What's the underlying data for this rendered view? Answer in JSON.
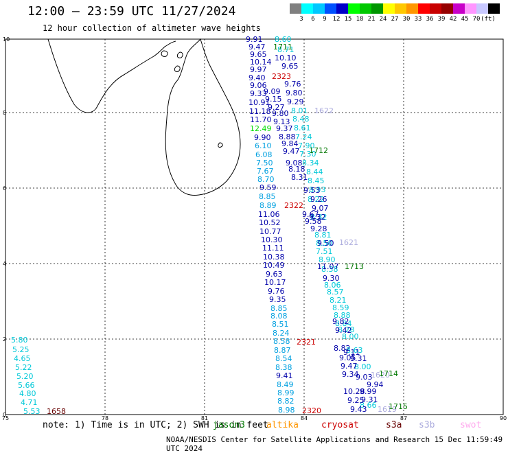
{
  "header": {
    "title": "12:00 – 23:59 UTC 11/27/2024",
    "subtitle": "12 hour collection of altimeter wave heights"
  },
  "scale": {
    "colors": [
      "#808080",
      "#00ffff",
      "#00c8ff",
      "#0050ff",
      "#0000c8",
      "#00ff00",
      "#00c800",
      "#009600",
      "#ffff00",
      "#ffc800",
      "#ff9600",
      "#ff0000",
      "#c80000",
      "#960000",
      "#c800c8",
      "#ff96ff",
      "#c8c8ff",
      "#000000"
    ],
    "labels": [
      "3",
      "6",
      "9",
      "12",
      "15",
      "18",
      "21",
      "24",
      "27",
      "30",
      "33",
      "36",
      "39",
      "42",
      "45",
      "70",
      "(ft)"
    ]
  },
  "axes": {
    "x_ticks": [
      "75",
      "78",
      "81",
      "84",
      "87",
      "90"
    ],
    "y_ticks": [
      "0",
      "2",
      "4",
      "6",
      "8",
      "10"
    ]
  },
  "tracks": [
    {
      "color": "#00c8d8",
      "points": [
        [
          "5.80",
          16,
          495
        ],
        [
          "5.25",
          18,
          509
        ],
        [
          "4.65",
          20,
          522
        ],
        [
          "5.22",
          22,
          535
        ],
        [
          "5.20",
          24,
          548
        ],
        [
          "5.66",
          26,
          561
        ],
        [
          "4.80",
          28,
          573
        ],
        [
          "4.71",
          30,
          586
        ],
        [
          "5.53",
          34,
          599
        ]
      ]
    },
    {
      "color": "#0000aa",
      "points": [
        [
          "9.91",
          358,
          57
        ],
        [
          "9.47",
          362,
          68
        ],
        [
          "9.65",
          364,
          79
        ],
        [
          "10.14",
          364,
          90
        ],
        [
          "9.97",
          364,
          101
        ],
        [
          "9.40",
          362,
          113
        ],
        [
          "9.06",
          364,
          124
        ],
        [
          "9.33",
          364,
          136
        ],
        [
          "10.91",
          362,
          149
        ],
        [
          "11.18",
          363,
          162
        ],
        [
          "11.70",
          364,
          174
        ],
        [
          "9.90",
          370,
          200
        ],
        [
          "9.59",
          378,
          273
        ],
        [
          "11.06",
          376,
          312
        ],
        [
          "10.52",
          377,
          324
        ],
        [
          "10.77",
          378,
          337
        ],
        [
          "10.30",
          380,
          349
        ],
        [
          "11.11",
          382,
          361
        ],
        [
          "10.38",
          383,
          374
        ],
        [
          "10.49",
          383,
          386
        ],
        [
          "9.63",
          387,
          399
        ],
        [
          "10.17",
          385,
          411
        ],
        [
          "9.76",
          390,
          424
        ],
        [
          "9.35",
          392,
          436
        ],
        [
          "9.41",
          402,
          547
        ]
      ]
    },
    {
      "color": "#00a0e0",
      "points": [
        [
          "6.10",
          371,
          212
        ],
        [
          "6.08",
          372,
          225
        ],
        [
          "7.50",
          373,
          237
        ],
        [
          "7.67",
          374,
          249
        ],
        [
          "8.70",
          375,
          261
        ],
        [
          "8.85",
          377,
          286
        ],
        [
          "8.89",
          378,
          299
        ],
        [
          "8.85",
          394,
          449
        ],
        [
          "8.08",
          394,
          460
        ],
        [
          "8.51",
          396,
          472
        ],
        [
          "8.24",
          397,
          485
        ],
        [
          "8.58",
          398,
          497
        ],
        [
          "8.87",
          399,
          510
        ],
        [
          "8.54",
          401,
          522
        ],
        [
          "8.38",
          401,
          535
        ],
        [
          "8.49",
          403,
          560
        ],
        [
          "8.99",
          404,
          572
        ],
        [
          "8.82",
          404,
          584
        ],
        [
          "8.98",
          405,
          597
        ]
      ]
    },
    {
      "color": "#00c8d8",
      "points": [
        [
          "8.60",
          400,
          57
        ],
        [
          "8.71",
          404,
          72
        ],
        [
          "8.61",
          428,
          186
        ],
        [
          "8.48",
          426,
          173
        ],
        [
          "8.01",
          424,
          161
        ],
        [
          "7.24",
          430,
          199
        ],
        [
          "7.90",
          434,
          212
        ],
        [
          "7.30",
          436,
          224
        ],
        [
          "8.34",
          440,
          237
        ],
        [
          "8.44",
          446,
          250
        ],
        [
          "8.45",
          448,
          263
        ],
        [
          "8.93",
          450,
          276
        ],
        [
          "8.22",
          448,
          290
        ],
        [
          "8.32",
          452,
          316
        ],
        [
          "8.81",
          458,
          342
        ],
        [
          "8.50",
          460,
          354
        ],
        [
          "7.51",
          460,
          366
        ],
        [
          "8.90",
          464,
          378
        ],
        [
          "8.38",
          468,
          392
        ],
        [
          "8.06",
          472,
          415
        ],
        [
          "8.57",
          476,
          425
        ],
        [
          "8.21",
          480,
          437
        ],
        [
          "8.59",
          484,
          448
        ],
        [
          "8.88",
          486,
          459
        ],
        [
          "8.84",
          488,
          471
        ],
        [
          "8.28",
          492,
          480
        ],
        [
          "8.00",
          498,
          490
        ],
        [
          "8.63",
          504,
          510
        ],
        [
          "8.00",
          516,
          534
        ],
        [
          "8.66",
          524,
          590
        ]
      ]
    },
    {
      "color": "#0000aa",
      "points": [
        [
          "10.10",
          400,
          84
        ],
        [
          "9.65",
          410,
          96
        ],
        [
          "9.76",
          414,
          122
        ],
        [
          "9.80",
          416,
          135
        ],
        [
          "9.29",
          418,
          148
        ],
        [
          "9.27",
          390,
          156
        ],
        [
          "9.09",
          384,
          133
        ],
        [
          "9.15",
          386,
          144
        ],
        [
          "9.80",
          396,
          165
        ],
        [
          "9.13",
          398,
          177
        ],
        [
          "9.37",
          402,
          187
        ],
        [
          "8.88",
          406,
          199
        ],
        [
          "9.84",
          410,
          209
        ],
        [
          "9.47",
          412,
          220
        ],
        [
          "9.08",
          416,
          237
        ],
        [
          "8.18",
          420,
          246
        ],
        [
          "8.31",
          424,
          258
        ],
        [
          "9.53",
          442,
          277
        ],
        [
          "9.26",
          452,
          290
        ],
        [
          "9.07",
          454,
          303
        ],
        [
          "9.67",
          440,
          312
        ],
        [
          "9.32",
          450,
          316
        ],
        [
          "9.58",
          444,
          322
        ],
        [
          "9.28",
          452,
          333
        ],
        [
          "9.50",
          462,
          354
        ],
        [
          "11.07",
          462,
          388
        ],
        [
          "9.30",
          470,
          405
        ],
        [
          "9.82",
          484,
          468
        ],
        [
          "9.42",
          488,
          481
        ],
        [
          "8.82",
          486,
          507
        ],
        [
          "9.11",
          500,
          513
        ],
        [
          "9.05",
          494,
          521
        ],
        [
          "9.31",
          510,
          522
        ],
        [
          "9.47",
          496,
          533
        ],
        [
          "9.34",
          498,
          545
        ],
        [
          "9.03",
          518,
          549
        ],
        [
          "9.94",
          534,
          560
        ],
        [
          "10.28",
          500,
          570
        ],
        [
          "9.99",
          524,
          570
        ],
        [
          "9.25",
          506,
          583
        ],
        [
          "9.31",
          526,
          582
        ],
        [
          "9.43",
          510,
          596
        ]
      ]
    },
    {
      "color": "#aaaadd",
      "points": [
        [
          "1622",
          458,
          161
        ],
        [
          "1621",
          494,
          353
        ],
        [
          "1620",
          540,
          546
        ],
        [
          "1619",
          550,
          596
        ]
      ]
    },
    {
      "color": "#007700",
      "points": [
        [
          "1711",
          398,
          68
        ],
        [
          "1712",
          450,
          219
        ],
        [
          "1713",
          502,
          388
        ],
        [
          "1714",
          552,
          544
        ],
        [
          "1715",
          566,
          592
        ]
      ]
    },
    {
      "color": "#cc0000",
      "points": [
        [
          "2323",
          396,
          111
        ],
        [
          "2322",
          414,
          299
        ],
        [
          "2321",
          432,
          498
        ],
        [
          "2320",
          440,
          598
        ]
      ]
    },
    {
      "color": "#660000",
      "points": [
        [
          "1658",
          68,
          599
        ]
      ]
    },
    {
      "color": "#00dd00",
      "points": [
        [
          "12.49",
          364,
          187
        ]
      ]
    }
  ],
  "footer": {
    "note": "note: 1) Time is in UTC; 2) SWH is in feet",
    "sats": [
      {
        "name": "jason3",
        "color": "#007700"
      },
      {
        "name": "altika",
        "color": "#ff9600"
      },
      {
        "name": "cryosat",
        "color": "#cc0000"
      },
      {
        "name": "s3a",
        "color": "#660000"
      },
      {
        "name": "s3b",
        "color": "#aaaadd"
      },
      {
        "name": "swot",
        "color": "#ffaaee"
      }
    ],
    "credit": "NOAA/NESDIS Center for Satellite Applications and Research   15 Dec 11:59:49 UTC 2024"
  }
}
